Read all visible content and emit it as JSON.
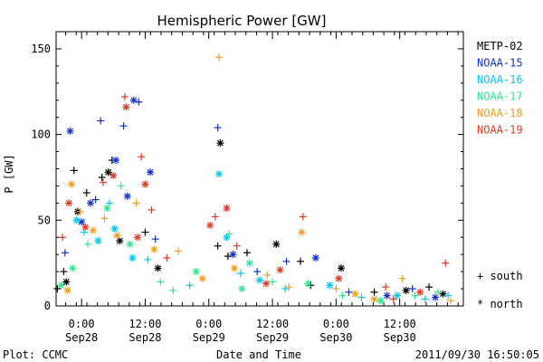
{
  "chart_data": {
    "type": "scatter",
    "title": "Hemispheric Power [GW]",
    "xlabel": "Date and Time",
    "ylabel": "P [GW]",
    "ylim": [
      0,
      160
    ],
    "xlim": [
      -0.2,
      3.0
    ],
    "yticks": [
      0,
      50,
      100,
      150
    ],
    "xticks": [
      {
        "x": 0.0,
        "label1": "0:00",
        "label2": "Sep28"
      },
      {
        "x": 0.5,
        "label1": "12:00",
        "label2": "Sep28"
      },
      {
        "x": 1.0,
        "label1": "0:00",
        "label2": "Sep29"
      },
      {
        "x": 1.5,
        "label1": "12:00",
        "label2": "Sep29"
      },
      {
        "x": 2.0,
        "label1": "0:00",
        "label2": "Sep30"
      },
      {
        "x": 2.5,
        "label1": "12:00",
        "label2": "Sep30"
      }
    ],
    "grid": false,
    "legend_position": "right",
    "x_unit_note": "x values are days relative to Sep28 00:00",
    "series": [
      {
        "name": "METP-02",
        "color": "#000000"
      },
      {
        "name": "NOAA-15",
        "color": "#1030d0"
      },
      {
        "name": "NOAA-16",
        "color": "#00c8f0"
      },
      {
        "name": "NOAA-17",
        "color": "#30e890"
      },
      {
        "name": "NOAA-18",
        "color": "#f0a020"
      },
      {
        "name": "NOAA-19",
        "color": "#e03820"
      }
    ],
    "markers": [
      {
        "symbol": "+",
        "label": "+ south"
      },
      {
        "symbol": "*",
        "label": "* north"
      }
    ],
    "points": [
      {
        "s": 0,
        "m": "+",
        "x": -0.19,
        "y": 10
      },
      {
        "s": 0,
        "m": "*",
        "x": -0.12,
        "y": 14
      },
      {
        "s": 0,
        "m": "+",
        "x": -0.06,
        "y": 79
      },
      {
        "s": 0,
        "m": "*",
        "x": -0.03,
        "y": 55
      },
      {
        "s": 0,
        "m": "+",
        "x": 0.04,
        "y": 66
      },
      {
        "s": 0,
        "m": "+",
        "x": 0.16,
        "y": 75
      },
      {
        "s": 0,
        "m": "*",
        "x": 0.21,
        "y": 78
      },
      {
        "s": 0,
        "m": "+",
        "x": 0.24,
        "y": 85
      },
      {
        "s": 0,
        "m": "*",
        "x": 0.3,
        "y": 38
      },
      {
        "s": 0,
        "m": "+",
        "x": 0.5,
        "y": 43
      },
      {
        "s": 0,
        "m": "+",
        "x": 1.07,
        "y": 35
      },
      {
        "s": 0,
        "m": "*",
        "x": 1.09,
        "y": 95
      },
      {
        "s": 0,
        "m": "+",
        "x": 1.15,
        "y": 29
      },
      {
        "s": 0,
        "m": "+",
        "x": 1.3,
        "y": 31
      },
      {
        "s": 0,
        "m": "*",
        "x": 1.53,
        "y": 36
      },
      {
        "s": 0,
        "m": "+",
        "x": 1.72,
        "y": 26
      },
      {
        "s": 0,
        "m": "*",
        "x": 2.04,
        "y": 22
      },
      {
        "s": 0,
        "m": "+",
        "x": 2.3,
        "y": 8
      },
      {
        "s": 0,
        "m": "*",
        "x": 2.55,
        "y": 9
      },
      {
        "s": 0,
        "m": "+",
        "x": 2.73,
        "y": 11
      },
      {
        "s": 0,
        "m": "*",
        "x": 2.84,
        "y": 7
      },
      {
        "s": 0,
        "m": "+",
        "x": -0.14,
        "y": 20
      },
      {
        "s": 0,
        "m": "*",
        "x": 0.6,
        "y": 22
      },
      {
        "s": 0,
        "m": "+",
        "x": 1.8,
        "y": 12
      },
      {
        "s": 1,
        "m": "*",
        "x": -0.09,
        "y": 102
      },
      {
        "s": 1,
        "m": "+",
        "x": -0.13,
        "y": 31
      },
      {
        "s": 1,
        "m": "*",
        "x": 0.07,
        "y": 60
      },
      {
        "s": 1,
        "m": "+",
        "x": 0.15,
        "y": 108
      },
      {
        "s": 1,
        "m": "*",
        "x": 0.27,
        "y": 85
      },
      {
        "s": 1,
        "m": "+",
        "x": 0.33,
        "y": 105
      },
      {
        "s": 1,
        "m": "*",
        "x": 0.41,
        "y": 120
      },
      {
        "s": 1,
        "m": "+",
        "x": 0.45,
        "y": 119
      },
      {
        "s": 1,
        "m": "*",
        "x": 0.54,
        "y": 78
      },
      {
        "s": 1,
        "m": "+",
        "x": 0.58,
        "y": 39
      },
      {
        "s": 1,
        "m": "+",
        "x": 1.07,
        "y": 104
      },
      {
        "s": 1,
        "m": "*",
        "x": 1.19,
        "y": 30
      },
      {
        "s": 1,
        "m": "+",
        "x": 1.61,
        "y": 26
      },
      {
        "s": 1,
        "m": "*",
        "x": 1.84,
        "y": 28
      },
      {
        "s": 1,
        "m": "+",
        "x": 2.1,
        "y": 8
      },
      {
        "s": 1,
        "m": "*",
        "x": 2.4,
        "y": 6
      },
      {
        "s": 1,
        "m": "+",
        "x": 2.6,
        "y": 10
      },
      {
        "s": 1,
        "m": "*",
        "x": 0.0,
        "y": 49
      },
      {
        "s": 1,
        "m": "+",
        "x": 0.11,
        "y": 62
      },
      {
        "s": 1,
        "m": "*",
        "x": 0.36,
        "y": 64
      },
      {
        "s": 1,
        "m": "+",
        "x": 1.38,
        "y": 20
      },
      {
        "s": 1,
        "m": "*",
        "x": 2.78,
        "y": 5
      },
      {
        "s": 2,
        "m": "*",
        "x": -0.04,
        "y": 50
      },
      {
        "s": 2,
        "m": "+",
        "x": 0.02,
        "y": 43
      },
      {
        "s": 2,
        "m": "*",
        "x": 0.13,
        "y": 38
      },
      {
        "s": 2,
        "m": "+",
        "x": 0.22,
        "y": 60
      },
      {
        "s": 2,
        "m": "*",
        "x": 0.4,
        "y": 28
      },
      {
        "s": 2,
        "m": "+",
        "x": 0.52,
        "y": 27
      },
      {
        "s": 2,
        "m": "*",
        "x": 1.08,
        "y": 77
      },
      {
        "s": 2,
        "m": "+",
        "x": 1.25,
        "y": 19
      },
      {
        "s": 2,
        "m": "*",
        "x": 1.4,
        "y": 15
      },
      {
        "s": 2,
        "m": "+",
        "x": 1.6,
        "y": 10
      },
      {
        "s": 2,
        "m": "*",
        "x": 1.95,
        "y": 12
      },
      {
        "s": 2,
        "m": "+",
        "x": 2.2,
        "y": 5
      },
      {
        "s": 2,
        "m": "*",
        "x": 2.48,
        "y": 6
      },
      {
        "s": 2,
        "m": "+",
        "x": 2.7,
        "y": 4
      },
      {
        "s": 2,
        "m": "*",
        "x": 0.26,
        "y": 45
      },
      {
        "s": 2,
        "m": "+",
        "x": 0.85,
        "y": 12
      },
      {
        "s": 2,
        "m": "*",
        "x": 1.14,
        "y": 40
      },
      {
        "s": 2,
        "m": "+",
        "x": 2.88,
        "y": 6
      },
      {
        "s": 3,
        "m": "*",
        "x": -0.07,
        "y": 22
      },
      {
        "s": 3,
        "m": "+",
        "x": 0.05,
        "y": 36
      },
      {
        "s": 3,
        "m": "*",
        "x": 0.2,
        "y": 57
      },
      {
        "s": 3,
        "m": "+",
        "x": 0.31,
        "y": 70
      },
      {
        "s": 3,
        "m": "*",
        "x": 0.38,
        "y": 36
      },
      {
        "s": 3,
        "m": "+",
        "x": 0.62,
        "y": 14
      },
      {
        "s": 3,
        "m": "*",
        "x": 0.9,
        "y": 20
      },
      {
        "s": 3,
        "m": "+",
        "x": 1.16,
        "y": 42
      },
      {
        "s": 3,
        "m": "*",
        "x": 1.26,
        "y": 10
      },
      {
        "s": 3,
        "m": "+",
        "x": 1.5,
        "y": 14
      },
      {
        "s": 3,
        "m": "*",
        "x": 1.78,
        "y": 13
      },
      {
        "s": 3,
        "m": "+",
        "x": 2.05,
        "y": 6
      },
      {
        "s": 3,
        "m": "*",
        "x": 2.35,
        "y": 3
      },
      {
        "s": 3,
        "m": "+",
        "x": 2.62,
        "y": 6
      },
      {
        "s": 3,
        "m": "*",
        "x": -0.16,
        "y": 12
      },
      {
        "s": 3,
        "m": "+",
        "x": 0.72,
        "y": 9
      },
      {
        "s": 3,
        "m": "*",
        "x": 1.32,
        "y": 25
      },
      {
        "s": 3,
        "m": "+",
        "x": 2.8,
        "y": 8
      },
      {
        "s": 4,
        "m": "*",
        "x": -0.08,
        "y": 71
      },
      {
        "s": 4,
        "m": "+",
        "x": -0.01,
        "y": 55
      },
      {
        "s": 4,
        "m": "*",
        "x": 0.09,
        "y": 44
      },
      {
        "s": 4,
        "m": "+",
        "x": 0.18,
        "y": 51
      },
      {
        "s": 4,
        "m": "*",
        "x": 0.28,
        "y": 41
      },
      {
        "s": 4,
        "m": "+",
        "x": 0.43,
        "y": 60
      },
      {
        "s": 4,
        "m": "*",
        "x": 0.57,
        "y": 33
      },
      {
        "s": 4,
        "m": "+",
        "x": 1.08,
        "y": 145
      },
      {
        "s": 4,
        "m": "*",
        "x": 1.2,
        "y": 22
      },
      {
        "s": 4,
        "m": "+",
        "x": 1.46,
        "y": 18
      },
      {
        "s": 4,
        "m": "*",
        "x": 1.73,
        "y": 43
      },
      {
        "s": 4,
        "m": "+",
        "x": 2.0,
        "y": 10
      },
      {
        "s": 4,
        "m": "*",
        "x": 2.3,
        "y": 4
      },
      {
        "s": 4,
        "m": "+",
        "x": 2.52,
        "y": 16
      },
      {
        "s": 4,
        "m": "*",
        "x": -0.11,
        "y": 9
      },
      {
        "s": 4,
        "m": "+",
        "x": 0.76,
        "y": 32
      },
      {
        "s": 4,
        "m": "*",
        "x": 0.95,
        "y": 16
      },
      {
        "s": 4,
        "m": "+",
        "x": 1.63,
        "y": 11
      },
      {
        "s": 4,
        "m": "*",
        "x": 2.15,
        "y": 7
      },
      {
        "s": 4,
        "m": "+",
        "x": 2.9,
        "y": 3
      },
      {
        "s": 5,
        "m": "*",
        "x": -0.1,
        "y": 60
      },
      {
        "s": 5,
        "m": "+",
        "x": -0.15,
        "y": 40
      },
      {
        "s": 5,
        "m": "*",
        "x": 0.03,
        "y": 46
      },
      {
        "s": 5,
        "m": "+",
        "x": 0.17,
        "y": 72
      },
      {
        "s": 5,
        "m": "*",
        "x": 0.25,
        "y": 76
      },
      {
        "s": 5,
        "m": "+",
        "x": 0.34,
        "y": 122
      },
      {
        "s": 5,
        "m": "*",
        "x": 0.35,
        "y": 116
      },
      {
        "s": 5,
        "m": "+",
        "x": 0.47,
        "y": 87
      },
      {
        "s": 5,
        "m": "*",
        "x": 0.5,
        "y": 71
      },
      {
        "s": 5,
        "m": "+",
        "x": 0.55,
        "y": 56
      },
      {
        "s": 5,
        "m": "*",
        "x": 1.01,
        "y": 47
      },
      {
        "s": 5,
        "m": "+",
        "x": 1.05,
        "y": 52
      },
      {
        "s": 5,
        "m": "*",
        "x": 1.14,
        "y": 57
      },
      {
        "s": 5,
        "m": "+",
        "x": 1.22,
        "y": 35
      },
      {
        "s": 5,
        "m": "*",
        "x": 1.56,
        "y": 21
      },
      {
        "s": 5,
        "m": "+",
        "x": 1.74,
        "y": 52
      },
      {
        "s": 5,
        "m": "*",
        "x": 2.02,
        "y": 16
      },
      {
        "s": 5,
        "m": "+",
        "x": 2.39,
        "y": 11
      },
      {
        "s": 5,
        "m": "*",
        "x": 2.66,
        "y": 8
      },
      {
        "s": 5,
        "m": "+",
        "x": 2.86,
        "y": 25
      },
      {
        "s": 5,
        "m": "*",
        "x": 0.44,
        "y": 40
      },
      {
        "s": 5,
        "m": "+",
        "x": 0.67,
        "y": 28
      },
      {
        "s": 5,
        "m": "*",
        "x": 1.45,
        "y": 13
      },
      {
        "s": 5,
        "m": "+",
        "x": 2.45,
        "y": 4
      }
    ]
  },
  "footer": {
    "left": "Plot: CCMC",
    "center": "Date and Time",
    "right": "2011/09/30 16:50:05"
  }
}
